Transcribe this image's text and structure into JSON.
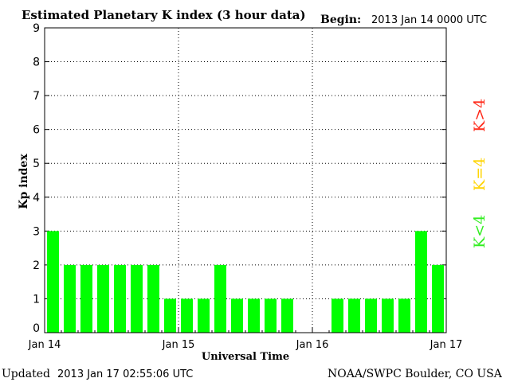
{
  "header": {
    "title": "Estimated Planetary K index (3 hour data)",
    "begin_label": "Begin:",
    "begin_value": "2013 Jan 14 0000 UTC"
  },
  "footer": {
    "updated_label": "Updated",
    "updated_value": "2013 Jan 17 02:55:06 UTC",
    "source": "NOAA/SWPC Boulder, CO USA"
  },
  "legend": {
    "high": {
      "text": "K>4",
      "color": "#ff2a1a"
    },
    "equal": {
      "text": "K=4",
      "color": "#ffd400"
    },
    "low": {
      "text": "K<4",
      "color": "#33ee22"
    }
  },
  "chart_data": {
    "type": "bar",
    "title": "Estimated Planetary K index (3 hour data)",
    "xlabel": "Universal Time",
    "ylabel": "Kp index",
    "ylim": [
      0,
      9
    ],
    "yticks": [
      "0",
      "1",
      "2",
      "3",
      "4",
      "5",
      "6",
      "7",
      "8",
      "9"
    ],
    "xtick_labels": [
      "Jan 14",
      "Jan 15",
      "Jan 16",
      "Jan 17"
    ],
    "interval_hours": 3,
    "grid": "vertical day boundaries and horizontal integer levels, dotted",
    "bar_color": "#00ff00",
    "values": [
      3,
      2,
      2,
      2,
      2,
      2,
      2,
      1,
      1,
      1,
      2,
      1,
      1,
      1,
      1,
      null,
      null,
      1,
      1,
      1,
      1,
      1,
      3,
      2
    ]
  }
}
